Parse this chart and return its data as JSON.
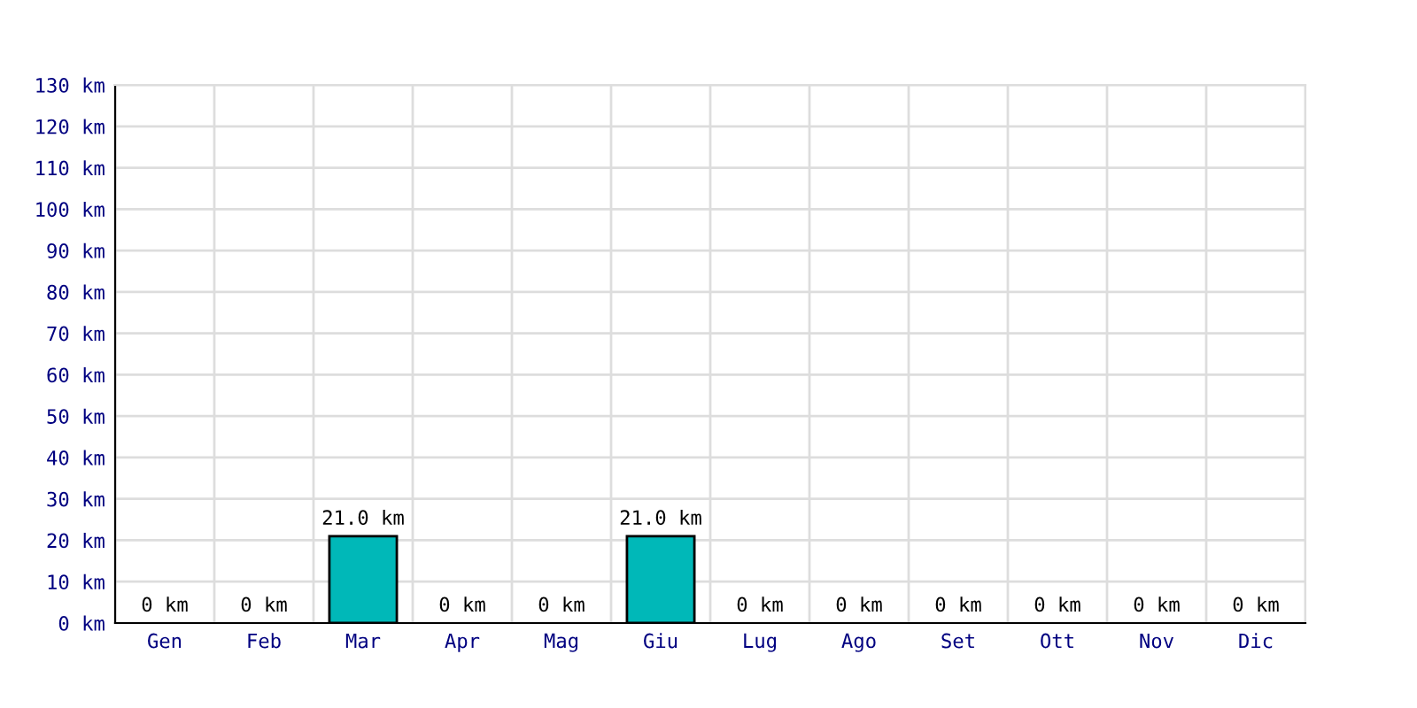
{
  "chart_data": {
    "type": "bar",
    "categories": [
      "Gen",
      "Feb",
      "Mar",
      "Apr",
      "Mag",
      "Giu",
      "Lug",
      "Ago",
      "Set",
      "Ott",
      "Nov",
      "Dic"
    ],
    "values": [
      0,
      0,
      21.0,
      0,
      0,
      21.0,
      0,
      0,
      0,
      0,
      0,
      0
    ],
    "value_labels": [
      "0 km",
      "0 km",
      "21.0 km",
      "0 km",
      "0 km",
      "21.0 km",
      "0 km",
      "0 km",
      "0 km",
      "0 km",
      "0 km",
      "0 km"
    ],
    "color": "#00b8b8",
    "ylim": [
      0,
      130
    ],
    "yticks": [
      {
        "value": 0,
        "label": "0 km"
      },
      {
        "value": 10,
        "label": "10 km"
      },
      {
        "value": 20,
        "label": "20 km"
      },
      {
        "value": 30,
        "label": "30 km"
      },
      {
        "value": 40,
        "label": "40 km"
      },
      {
        "value": 50,
        "label": "50 km"
      },
      {
        "value": 60,
        "label": "60 km"
      },
      {
        "value": 70,
        "label": "70 km"
      },
      {
        "value": 80,
        "label": "80 km"
      },
      {
        "value": 90,
        "label": "90 km"
      },
      {
        "value": 100,
        "label": "100 km"
      },
      {
        "value": 110,
        "label": "110 km"
      },
      {
        "value": 120,
        "label": "120 km"
      },
      {
        "value": 130,
        "label": "130 km"
      }
    ],
    "grid": true
  }
}
